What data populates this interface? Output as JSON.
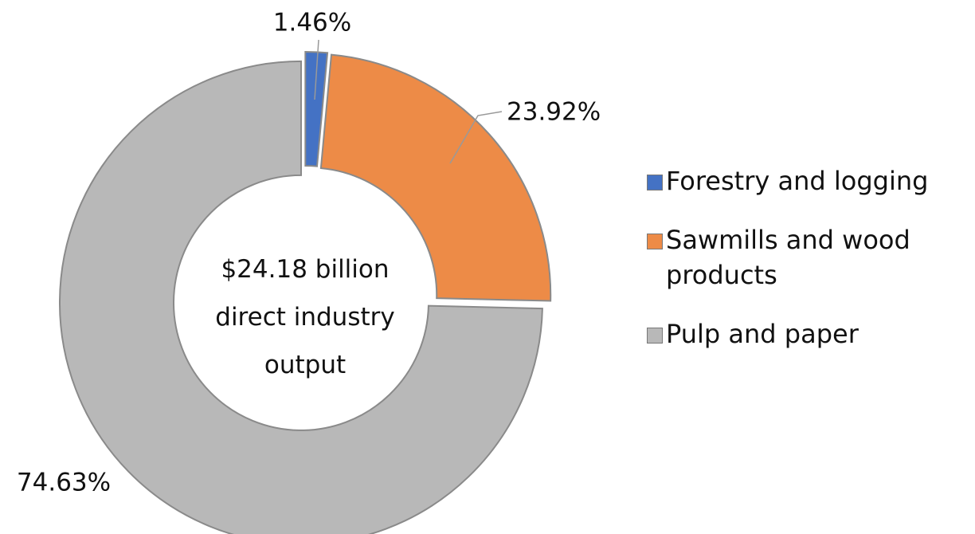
{
  "chart_data": {
    "type": "donut",
    "center_text": "$24.18 billion direct industry output",
    "categories": [
      "Forestry and logging",
      "Sawmills and wood products",
      "Pulp and paper"
    ],
    "values": [
      1.46,
      23.92,
      74.63
    ],
    "value_labels": [
      "1.46%",
      "23.92%",
      "74.63%"
    ],
    "colors": [
      "#4472c4",
      "#ed8b47",
      "#b8b8b8"
    ],
    "legend": "right"
  }
}
